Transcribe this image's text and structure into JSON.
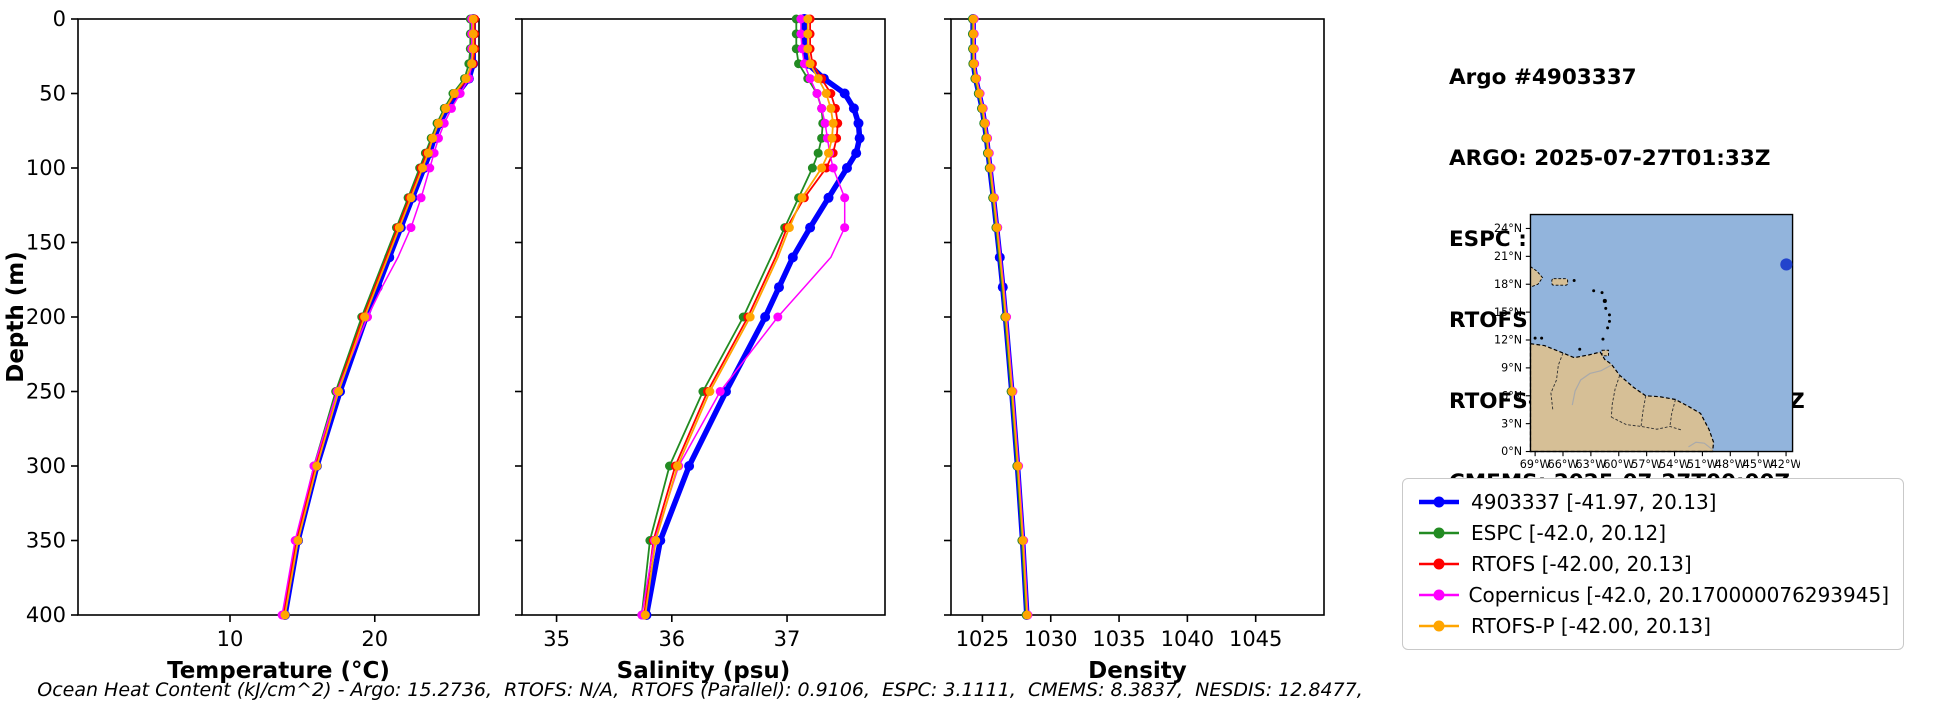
{
  "info_panel": {
    "title": "Argo #4903337",
    "lines": [
      "ARGO: 2025-07-27T01:33Z",
      "ESPC : 2025-07-27T03:00Z",
      "RTOFS: 2025-07-27T00:00Z",
      "RTOFS-P: 2025-07-27T00:00Z",
      "CMEMS: 2025-07-27T00:00Z"
    ]
  },
  "map": {
    "lat_ticks": [
      "24°N",
      "21°N",
      "18°N",
      "15°N",
      "12°N",
      "9°N",
      "6°N",
      "3°N",
      "0°N"
    ],
    "lon_ticks": [
      "69°W",
      "66°W",
      "63°W",
      "60°W",
      "57°W",
      "54°W",
      "51°W",
      "48°W",
      "45°W",
      "42°W"
    ],
    "float_position": {
      "lon": -41.97,
      "lat": 20.13
    },
    "ocean_color": "#92b4dc",
    "land_color": "#d6bf96",
    "dot_color": "#2244cc"
  },
  "legend": {
    "entries": [
      {
        "label": "4903337 [-41.97, 20.13]",
        "color": "#0000ff"
      },
      {
        "label": "ESPC [-42.0, 20.12]",
        "color": "#228b22"
      },
      {
        "label": "RTOFS [-42.00, 20.13]",
        "color": "#ff0000"
      },
      {
        "label": "Copernicus [-42.0, 20.170000076293945]",
        "color": "#ff00ff"
      },
      {
        "label": "RTOFS-P [-42.00, 20.13]",
        "color": "#ffa500"
      }
    ]
  },
  "footer": {
    "ohc_text": "Ocean Heat Content (kJ/cm^2) - Argo: 15.2736,  RTOFS: N/A,  RTOFS (Parallel): 0.9106,  ESPC: 3.1111,  CMEMS: 8.3837,  NESDIS: 12.8477,"
  },
  "chart_data": [
    {
      "type": "line",
      "title": "",
      "xlabel": "Temperature (°C)",
      "ylabel": "Depth (m)",
      "xlim": [
        -0.5,
        27.2
      ],
      "ylim": [
        0,
        400
      ],
      "xticks": [
        10,
        20
      ],
      "yticks": [
        0,
        50,
        100,
        150,
        200,
        250,
        300,
        350,
        400
      ],
      "depths": [
        0,
        10,
        20,
        30,
        40,
        50,
        60,
        70,
        80,
        90,
        100,
        120,
        140,
        160,
        180,
        200,
        250,
        300,
        350,
        400
      ],
      "series": [
        {
          "name": "4903337",
          "color": "#0000ff",
          "linewidth": 5.5,
          "marker_size": 5,
          "markers": "all",
          "values": [
            26.8,
            26.8,
            26.8,
            26.8,
            26.5,
            25.7,
            25.0,
            24.5,
            24.1,
            23.8,
            23.4,
            22.6,
            21.8,
            21.0,
            20.2,
            19.4,
            17.6,
            16.0,
            14.7,
            13.8
          ]
        },
        {
          "name": "ESPC",
          "color": "#228b22",
          "linewidth": 1.8,
          "marker_size": 4.5,
          "markers": "sparse",
          "values": [
            26.6,
            26.6,
            26.6,
            26.5,
            26.2,
            25.4,
            24.8,
            24.3,
            23.9,
            23.5,
            23.1,
            22.3,
            21.5,
            20.7,
            19.9,
            19.1,
            17.3,
            15.8,
            14.6,
            13.7
          ]
        },
        {
          "name": "RTOFS",
          "color": "#ff0000",
          "linewidth": 1.8,
          "marker_size": 4.5,
          "markers": "sparse",
          "values": [
            26.9,
            26.9,
            26.9,
            26.8,
            26.4,
            25.6,
            24.9,
            24.4,
            24.0,
            23.6,
            23.2,
            22.4,
            21.6,
            20.8,
            20.0,
            19.2,
            17.4,
            15.9,
            14.6,
            13.7
          ]
        },
        {
          "name": "Copernicus",
          "color": "#ff00ff",
          "linewidth": 1.5,
          "marker_size": 4.5,
          "markers": "sparse",
          "values": [
            26.7,
            26.7,
            26.7,
            26.7,
            26.5,
            25.9,
            25.3,
            24.8,
            24.4,
            24.1,
            23.8,
            23.2,
            22.5,
            21.6,
            20.5,
            19.5,
            17.4,
            15.8,
            14.5,
            13.6
          ]
        },
        {
          "name": "RTOFS-P",
          "color": "#ffa500",
          "linewidth": 1.8,
          "marker_size": 4.5,
          "markers": "sparse",
          "values": [
            26.8,
            26.8,
            26.8,
            26.7,
            26.3,
            25.5,
            24.9,
            24.4,
            24.0,
            23.7,
            23.3,
            22.5,
            21.7,
            20.9,
            20.1,
            19.3,
            17.5,
            16.0,
            14.7,
            13.8
          ]
        }
      ]
    },
    {
      "type": "line",
      "title": "",
      "xlabel": "Salinity (psu)",
      "ylabel": "",
      "xlim": [
        34.7,
        37.85
      ],
      "ylim": [
        0,
        400
      ],
      "xticks": [
        35,
        36,
        37
      ],
      "yticks": [
        0,
        50,
        100,
        150,
        200,
        250,
        300,
        350,
        400
      ],
      "depths": [
        0,
        10,
        20,
        30,
        40,
        50,
        60,
        70,
        80,
        90,
        100,
        120,
        140,
        160,
        180,
        200,
        250,
        300,
        350,
        400
      ],
      "series": [
        {
          "name": "4903337",
          "color": "#0000ff",
          "linewidth": 5.5,
          "marker_size": 5,
          "markers": "all",
          "values": [
            37.15,
            37.15,
            37.15,
            37.18,
            37.32,
            37.5,
            37.58,
            37.62,
            37.63,
            37.6,
            37.52,
            37.36,
            37.2,
            37.05,
            36.93,
            36.81,
            36.47,
            36.15,
            35.9,
            35.78
          ]
        },
        {
          "name": "ESPC",
          "color": "#228b22",
          "linewidth": 1.8,
          "marker_size": 4.5,
          "markers": "sparse",
          "values": [
            37.08,
            37.08,
            37.08,
            37.1,
            37.18,
            37.26,
            37.3,
            37.31,
            37.3,
            37.27,
            37.22,
            37.1,
            36.98,
            36.86,
            36.74,
            36.62,
            36.27,
            35.98,
            35.81,
            35.74
          ]
        },
        {
          "name": "RTOFS",
          "color": "#ff0000",
          "linewidth": 1.8,
          "marker_size": 4.5,
          "markers": "sparse",
          "values": [
            37.2,
            37.2,
            37.2,
            37.22,
            37.3,
            37.38,
            37.42,
            37.44,
            37.43,
            37.4,
            37.34,
            37.15,
            37.0,
            36.9,
            36.78,
            36.66,
            36.31,
            36.03,
            35.84,
            35.76
          ]
        },
        {
          "name": "Copernicus",
          "color": "#ff00ff",
          "linewidth": 1.5,
          "marker_size": 4.5,
          "markers": "sparse",
          "values": [
            37.12,
            37.12,
            37.13,
            37.15,
            37.2,
            37.26,
            37.3,
            37.33,
            37.35,
            37.37,
            37.4,
            37.5,
            37.5,
            37.38,
            37.15,
            36.92,
            36.42,
            36.06,
            35.85,
            35.74
          ]
        },
        {
          "name": "RTOFS-P",
          "color": "#ffa500",
          "linewidth": 1.8,
          "marker_size": 4.5,
          "markers": "sparse",
          "values": [
            37.18,
            37.18,
            37.18,
            37.2,
            37.27,
            37.34,
            37.38,
            37.4,
            37.39,
            37.36,
            37.3,
            37.13,
            37.02,
            36.92,
            36.8,
            36.68,
            36.33,
            36.05,
            35.86,
            35.77
          ]
        }
      ]
    },
    {
      "type": "line",
      "title": "",
      "xlabel": "Density",
      "ylabel": "",
      "xlim": [
        1022.7,
        1050.0
      ],
      "ylim": [
        0,
        400
      ],
      "xticks": [
        1025,
        1030,
        1035,
        1040,
        1045
      ],
      "yticks": [
        0,
        50,
        100,
        150,
        200,
        250,
        300,
        350,
        400
      ],
      "depths": [
        0,
        10,
        20,
        30,
        40,
        50,
        60,
        70,
        80,
        90,
        100,
        120,
        140,
        160,
        180,
        200,
        250,
        300,
        350,
        400
      ],
      "series": [
        {
          "name": "4903337",
          "color": "#0000ff",
          "linewidth": 5.5,
          "marker_size": 5,
          "markers": "all",
          "values": [
            1024.32,
            1024.32,
            1024.33,
            1024.35,
            1024.5,
            1024.75,
            1024.98,
            1025.15,
            1025.3,
            1025.42,
            1025.55,
            1025.8,
            1026.04,
            1026.27,
            1026.49,
            1026.69,
            1027.15,
            1027.57,
            1027.94,
            1028.25
          ]
        },
        {
          "name": "ESPC",
          "color": "#228b22",
          "linewidth": 1.8,
          "marker_size": 4.5,
          "markers": "sparse",
          "values": [
            1024.27,
            1024.27,
            1024.28,
            1024.3,
            1024.45,
            1024.7,
            1024.93,
            1025.1,
            1025.25,
            1025.37,
            1025.5,
            1025.75,
            1025.99,
            1026.22,
            1026.44,
            1026.64,
            1027.1,
            1027.52,
            1027.89,
            1028.2
          ]
        },
        {
          "name": "RTOFS",
          "color": "#ff0000",
          "linewidth": 1.8,
          "marker_size": 4.5,
          "markers": "sparse",
          "values": [
            1024.36,
            1024.36,
            1024.37,
            1024.39,
            1024.54,
            1024.79,
            1025.02,
            1025.19,
            1025.34,
            1025.46,
            1025.59,
            1025.84,
            1026.08,
            1026.31,
            1026.53,
            1026.73,
            1027.19,
            1027.61,
            1027.98,
            1028.29
          ]
        },
        {
          "name": "Copernicus",
          "color": "#ff00ff",
          "linewidth": 1.5,
          "marker_size": 4.5,
          "markers": "sparse",
          "values": [
            1024.4,
            1024.4,
            1024.41,
            1024.43,
            1024.58,
            1024.83,
            1025.06,
            1025.23,
            1025.38,
            1025.5,
            1025.63,
            1025.88,
            1026.12,
            1026.35,
            1026.57,
            1026.77,
            1027.23,
            1027.65,
            1028.02,
            1028.33
          ]
        },
        {
          "name": "RTOFS-P",
          "color": "#ffa500",
          "linewidth": 1.8,
          "marker_size": 4.5,
          "markers": "sparse",
          "values": [
            1024.34,
            1024.34,
            1024.35,
            1024.37,
            1024.52,
            1024.77,
            1025.0,
            1025.17,
            1025.32,
            1025.44,
            1025.57,
            1025.82,
            1026.06,
            1026.29,
            1026.51,
            1026.71,
            1027.17,
            1027.59,
            1027.96,
            1028.27
          ]
        }
      ]
    }
  ]
}
